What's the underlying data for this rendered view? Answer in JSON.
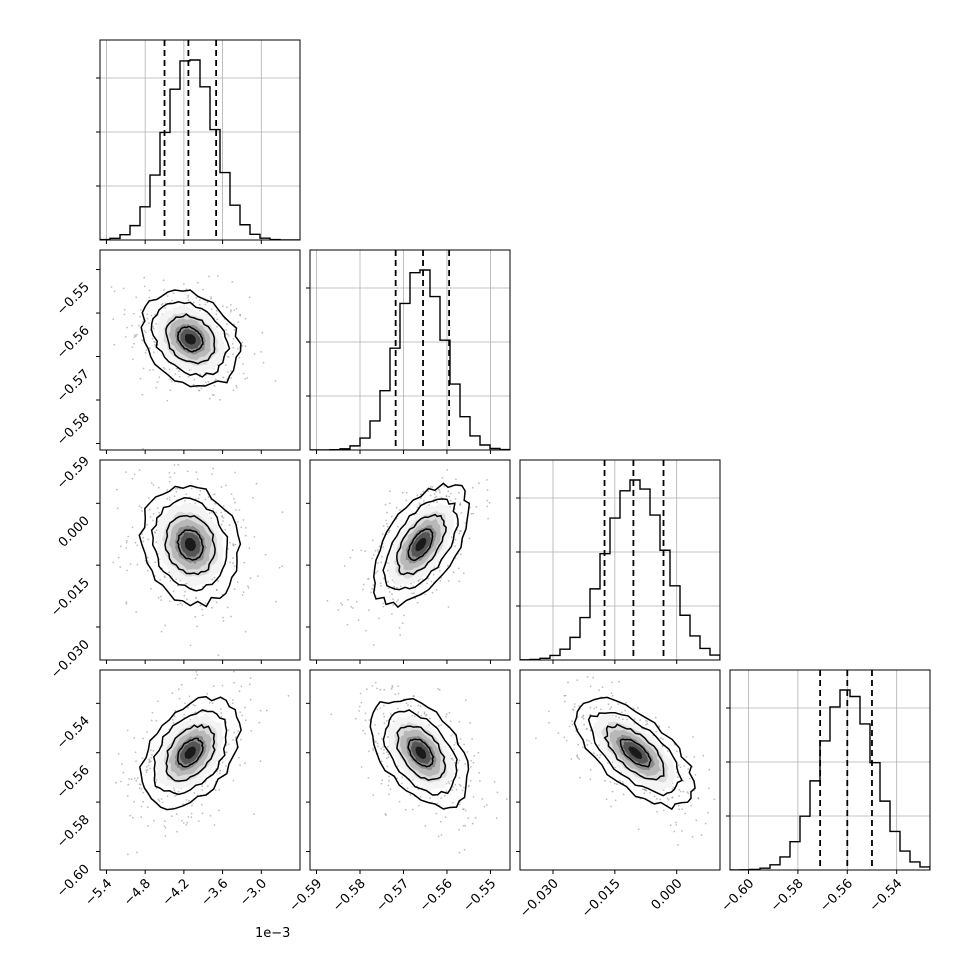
{
  "chart_data": {
    "type": "corner",
    "n_params": 4,
    "grid": true,
    "colors": {
      "line": "#000000",
      "grid": "#b0b0b0",
      "points": "#7f7f7f",
      "background": "#ffffff"
    },
    "parameters": [
      {
        "range": [
          -5.5,
          -2.4
        ],
        "ticks": [
          -5.4,
          -4.8,
          -4.2,
          -3.6,
          -3.0
        ],
        "tick_labels": [
          "−5.4",
          "−4.8",
          "−4.2",
          "−3.6",
          "−3.0"
        ],
        "offset_label": "1e−3",
        "mean": -4.1,
        "sd": 0.38,
        "quantiles": [
          -4.5,
          -4.13,
          -3.7
        ]
      },
      {
        "range": [
          -0.5915,
          -0.5455
        ],
        "ticks": [
          -0.59,
          -0.58,
          -0.57,
          -0.56,
          -0.55
        ],
        "tick_labels": [
          "−0.59",
          "−0.58",
          "−0.57",
          "−0.56",
          "−0.55"
        ],
        "mean": -0.566,
        "sd": 0.0055,
        "quantiles": [
          -0.5718,
          -0.5655,
          -0.5595
        ]
      },
      {
        "range": [
          -0.038,
          0.0105
        ],
        "ticks": [
          -0.03,
          -0.015,
          0.0
        ],
        "tick_labels": [
          "−0.030",
          "−0.015",
          "0.000"
        ],
        "mean": -0.01,
        "sd": 0.0072,
        "quantiles": [
          -0.0175,
          -0.0105,
          -0.0032
        ]
      },
      {
        "range": [
          -0.6075,
          -0.5265
        ],
        "ticks": [
          -0.6,
          -0.58,
          -0.56,
          -0.54
        ],
        "tick_labels": [
          "−0.60",
          "−0.58",
          "−0.56",
          "−0.54"
        ],
        "mean": -0.56,
        "sd": 0.011,
        "quantiles": [
          -0.571,
          -0.56,
          -0.55
        ]
      }
    ],
    "correlations": [
      {
        "pair": [
          1,
          0
        ],
        "rho": -0.25
      },
      {
        "pair": [
          2,
          0
        ],
        "rho": -0.15
      },
      {
        "pair": [
          2,
          1
        ],
        "rho": 0.55
      },
      {
        "pair": [
          3,
          0
        ],
        "rho": 0.4
      },
      {
        "pair": [
          3,
          1
        ],
        "rho": -0.45
      },
      {
        "pair": [
          3,
          2
        ],
        "rho": -0.65
      }
    ],
    "histogram_bins": 20,
    "scatter_points_per_panel": 380
  }
}
